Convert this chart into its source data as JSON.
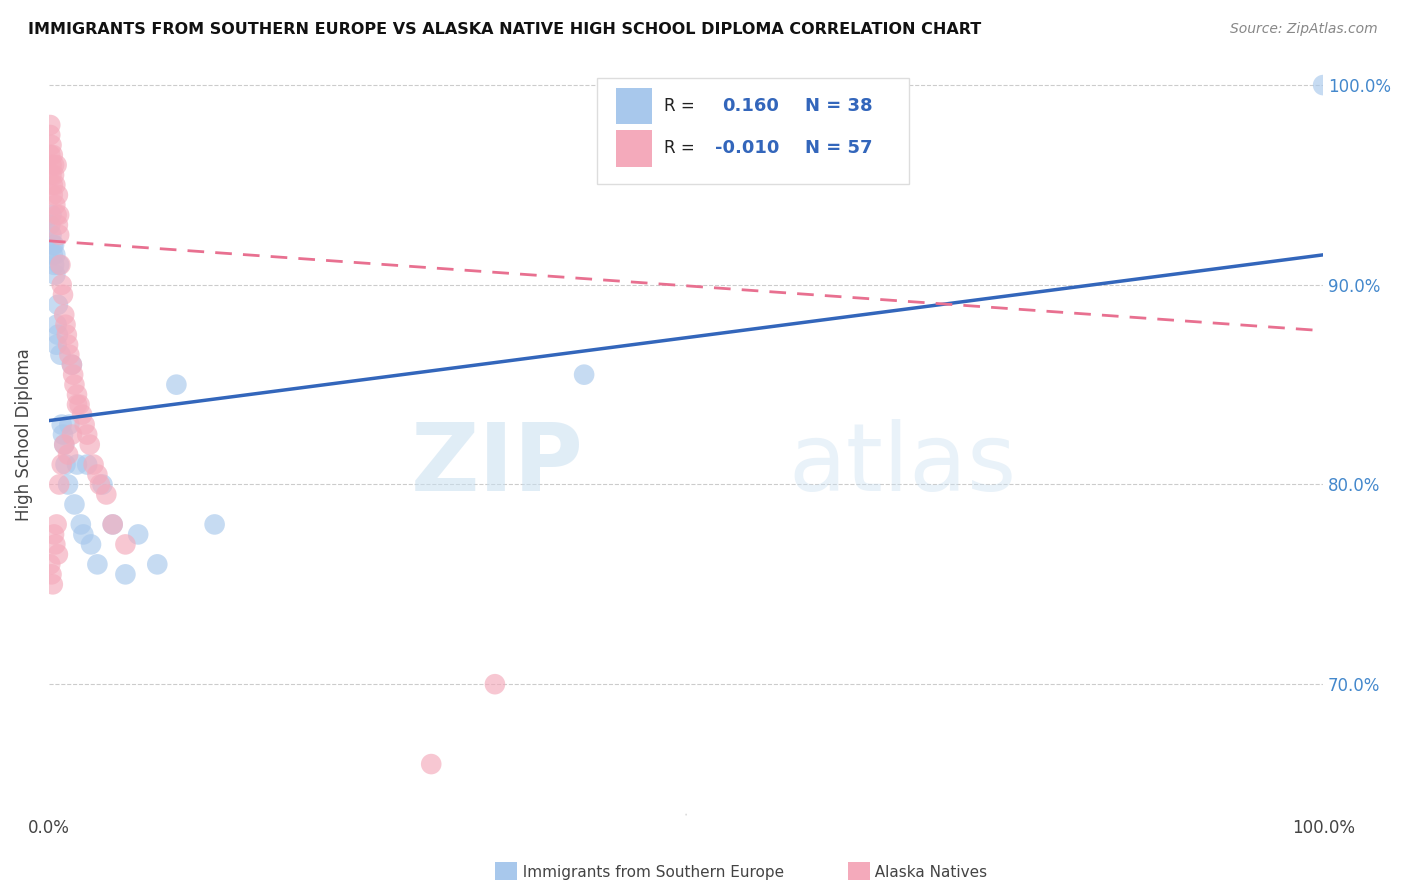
{
  "title": "IMMIGRANTS FROM SOUTHERN EUROPE VS ALASKA NATIVE HIGH SCHOOL DIPLOMA CORRELATION CHART",
  "source": "Source: ZipAtlas.com",
  "ylabel": "High School Diploma",
  "legend_label_blue": "Immigrants from Southern Europe",
  "legend_label_pink": "Alaska Natives",
  "y_tick_labels": [
    "70.0%",
    "80.0%",
    "90.0%",
    "100.0%"
  ],
  "y_tick_values": [
    0.7,
    0.8,
    0.9,
    1.0
  ],
  "blue_color": "#A8C8EC",
  "pink_color": "#F4AABB",
  "blue_line_color": "#3366BB",
  "pink_line_color": "#E87090",
  "watermark_zip": "ZIP",
  "watermark_atlas": "atlas",
  "xlim": [
    0.0,
    1.0
  ],
  "ylim": [
    0.635,
    1.015
  ],
  "blue_x": [
    0.001,
    0.002,
    0.002,
    0.003,
    0.003,
    0.004,
    0.004,
    0.005,
    0.005,
    0.006,
    0.006,
    0.007,
    0.007,
    0.008,
    0.009,
    0.01,
    0.011,
    0.012,
    0.013,
    0.015,
    0.016,
    0.018,
    0.02,
    0.022,
    0.025,
    0.027,
    0.03,
    0.033,
    0.038,
    0.042,
    0.05,
    0.06,
    0.07,
    0.085,
    0.1,
    0.13,
    0.42,
    1.0
  ],
  "blue_y": [
    0.93,
    0.935,
    0.925,
    0.92,
    0.915,
    0.91,
    0.92,
    0.905,
    0.915,
    0.88,
    0.87,
    0.89,
    0.875,
    0.91,
    0.865,
    0.83,
    0.825,
    0.82,
    0.81,
    0.8,
    0.83,
    0.86,
    0.79,
    0.81,
    0.78,
    0.775,
    0.81,
    0.77,
    0.76,
    0.8,
    0.78,
    0.755,
    0.775,
    0.76,
    0.85,
    0.78,
    0.855,
    1.0
  ],
  "pink_x": [
    0.001,
    0.001,
    0.001,
    0.002,
    0.002,
    0.002,
    0.003,
    0.003,
    0.003,
    0.004,
    0.004,
    0.005,
    0.005,
    0.006,
    0.006,
    0.007,
    0.007,
    0.008,
    0.008,
    0.009,
    0.01,
    0.011,
    0.012,
    0.013,
    0.014,
    0.015,
    0.016,
    0.018,
    0.019,
    0.02,
    0.022,
    0.024,
    0.026,
    0.028,
    0.03,
    0.032,
    0.035,
    0.038,
    0.04,
    0.045,
    0.05,
    0.06,
    0.001,
    0.002,
    0.003,
    0.004,
    0.005,
    0.006,
    0.007,
    0.008,
    0.01,
    0.012,
    0.015,
    0.018,
    0.022,
    0.35,
    0.3
  ],
  "pink_y": [
    0.98,
    0.975,
    0.965,
    0.97,
    0.96,
    0.955,
    0.95,
    0.965,
    0.945,
    0.96,
    0.955,
    0.95,
    0.94,
    0.935,
    0.96,
    0.93,
    0.945,
    0.925,
    0.935,
    0.91,
    0.9,
    0.895,
    0.885,
    0.88,
    0.875,
    0.87,
    0.865,
    0.86,
    0.855,
    0.85,
    0.845,
    0.84,
    0.835,
    0.83,
    0.825,
    0.82,
    0.81,
    0.805,
    0.8,
    0.795,
    0.78,
    0.77,
    0.76,
    0.755,
    0.75,
    0.775,
    0.77,
    0.78,
    0.765,
    0.8,
    0.81,
    0.82,
    0.815,
    0.825,
    0.84,
    0.7,
    0.66
  ],
  "blue_line_x0": 0.0,
  "blue_line_y0": 0.832,
  "blue_line_x1": 1.0,
  "blue_line_y1": 0.915,
  "pink_line_x0": 0.0,
  "pink_line_y0": 0.922,
  "pink_line_x1": 1.0,
  "pink_line_y1": 0.877
}
